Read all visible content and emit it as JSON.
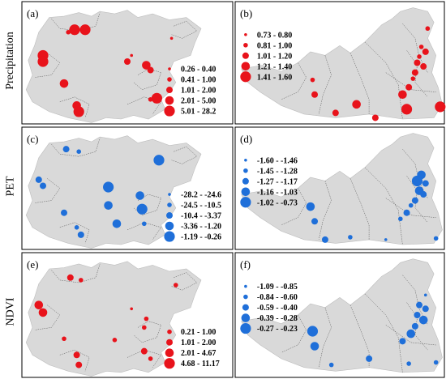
{
  "row_labels": [
    "Precipitation",
    "PET",
    "NDVI"
  ],
  "colors": {
    "positive": "#e8131b",
    "negative": "#1f6fd9",
    "land": "#d9d9d9",
    "frame": "#000000",
    "boundary": "#555555"
  },
  "panels": [
    {
      "id": "a",
      "label": "(a)",
      "map": "left",
      "color_key": "positive",
      "legend": [
        "0.26 - 0.40",
        "0.41 - 1.00",
        "1.01 - 2.00",
        "2.01 - 5.00",
        "5.01 - 28.2"
      ],
      "stations": [
        {
          "lon": 0.25,
          "lat": 0.77,
          "class": 5
        },
        {
          "lon": 0.3,
          "lat": 0.77,
          "class": 5
        },
        {
          "lon": 0.22,
          "lat": 0.75,
          "class": 2
        },
        {
          "lon": 0.1,
          "lat": 0.56,
          "class": 5
        },
        {
          "lon": 0.1,
          "lat": 0.51,
          "class": 5
        },
        {
          "lon": 0.71,
          "lat": 0.7,
          "class": 1
        },
        {
          "lon": 0.52,
          "lat": 0.56,
          "class": 1
        },
        {
          "lon": 0.5,
          "lat": 0.51,
          "class": 3
        },
        {
          "lon": 0.59,
          "lat": 0.48,
          "class": 4
        },
        {
          "lon": 0.61,
          "lat": 0.44,
          "class": 3
        },
        {
          "lon": 0.2,
          "lat": 0.33,
          "class": 4
        },
        {
          "lon": 0.64,
          "lat": 0.21,
          "class": 5
        },
        {
          "lon": 0.61,
          "lat": 0.2,
          "class": 2
        },
        {
          "lon": 0.27,
          "lat": 0.1,
          "class": 5
        },
        {
          "lon": 0.26,
          "lat": 0.15,
          "class": 4
        }
      ]
    },
    {
      "id": "b",
      "label": "(b)",
      "map": "right",
      "color_key": "positive",
      "legend": [
        "0.73 - 0.80",
        "0.81 - 1.00",
        "1.01 - 1.20",
        "1.21 - 1.40",
        "1.41 - 1.60"
      ],
      "stations": [
        {
          "lon": 0.92,
          "lat": 0.78,
          "class": 2
        },
        {
          "lon": 0.89,
          "lat": 0.63,
          "class": 2
        },
        {
          "lon": 0.91,
          "lat": 0.59,
          "class": 3
        },
        {
          "lon": 0.88,
          "lat": 0.55,
          "class": 2
        },
        {
          "lon": 0.87,
          "lat": 0.5,
          "class": 3
        },
        {
          "lon": 0.9,
          "lat": 0.47,
          "class": 3
        },
        {
          "lon": 0.86,
          "lat": 0.42,
          "class": 3
        },
        {
          "lon": 0.85,
          "lat": 0.37,
          "class": 2
        },
        {
          "lon": 0.83,
          "lat": 0.3,
          "class": 3
        },
        {
          "lon": 0.8,
          "lat": 0.24,
          "class": 4
        },
        {
          "lon": 0.37,
          "lat": 0.36,
          "class": 2
        },
        {
          "lon": 0.38,
          "lat": 0.24,
          "class": 3
        },
        {
          "lon": 0.48,
          "lat": 0.09,
          "class": 3
        },
        {
          "lon": 0.58,
          "lat": 0.16,
          "class": 4
        },
        {
          "lon": 0.67,
          "lat": 0.05,
          "class": 3
        },
        {
          "lon": 0.82,
          "lat": 0.12,
          "class": 5
        },
        {
          "lon": 0.98,
          "lat": 0.14,
          "class": 5
        }
      ]
    },
    {
      "id": "c",
      "label": "(c)",
      "map": "left",
      "color_key": "negative",
      "legend": [
        "-28.2 - -24.6",
        "-24.5 - -10.5",
        "-10.4 - -3.37",
        "-3.36 - -1.20",
        "-1.19 - -0.26"
      ],
      "stations": [
        {
          "lon": 0.21,
          "lat": 0.82,
          "class": 3
        },
        {
          "lon": 0.27,
          "lat": 0.8,
          "class": 2
        },
        {
          "lon": 0.65,
          "lat": 0.73,
          "class": 5
        },
        {
          "lon": 0.08,
          "lat": 0.57,
          "class": 3
        },
        {
          "lon": 0.1,
          "lat": 0.52,
          "class": 3
        },
        {
          "lon": 0.41,
          "lat": 0.51,
          "class": 5
        },
        {
          "lon": 0.41,
          "lat": 0.36,
          "class": 4
        },
        {
          "lon": 0.56,
          "lat": 0.44,
          "class": 4
        },
        {
          "lon": 0.57,
          "lat": 0.33,
          "class": 5
        },
        {
          "lon": 0.2,
          "lat": 0.3,
          "class": 3
        },
        {
          "lon": 0.58,
          "lat": 0.21,
          "class": 2
        },
        {
          "lon": 0.45,
          "lat": 0.21,
          "class": 4
        },
        {
          "lon": 0.26,
          "lat": 0.18,
          "class": 2
        },
        {
          "lon": 0.28,
          "lat": 0.12,
          "class": 3
        }
      ]
    },
    {
      "id": "d",
      "label": "(d)",
      "map": "right",
      "color_key": "negative",
      "legend": [
        "-1.60 - -1.46",
        "-1.45 - -1.28",
        "-1.27 - -1.17",
        "-1.16 - -1.03",
        "-1.02 - -0.73"
      ],
      "stations": [
        {
          "lon": 0.89,
          "lat": 0.61,
          "class": 4
        },
        {
          "lon": 0.87,
          "lat": 0.56,
          "class": 5
        },
        {
          "lon": 0.91,
          "lat": 0.54,
          "class": 3
        },
        {
          "lon": 0.88,
          "lat": 0.48,
          "class": 4
        },
        {
          "lon": 0.9,
          "lat": 0.45,
          "class": 3
        },
        {
          "lon": 0.86,
          "lat": 0.4,
          "class": 3
        },
        {
          "lon": 0.84,
          "lat": 0.36,
          "class": 2
        },
        {
          "lon": 0.82,
          "lat": 0.3,
          "class": 3
        },
        {
          "lon": 0.79,
          "lat": 0.25,
          "class": 2
        },
        {
          "lon": 0.36,
          "lat": 0.35,
          "class": 4
        },
        {
          "lon": 0.38,
          "lat": 0.23,
          "class": 3
        },
        {
          "lon": 0.43,
          "lat": 0.08,
          "class": 3
        },
        {
          "lon": 0.55,
          "lat": 0.1,
          "class": 2
        },
        {
          "lon": 0.72,
          "lat": 0.08,
          "class": 1
        },
        {
          "lon": 0.96,
          "lat": 0.09,
          "class": 2
        }
      ]
    },
    {
      "id": "e",
      "label": "(e)",
      "map": "left",
      "color_key": "positive",
      "legend": [
        "0.21 - 1.00",
        "1.01 - 2.00",
        "2.01 - 4.67",
        "4.68 - 11.17"
      ],
      "stations": [
        {
          "lon": 0.23,
          "lat": 0.8,
          "class": 3
        },
        {
          "lon": 0.28,
          "lat": 0.78,
          "class": 2
        },
        {
          "lon": 0.73,
          "lat": 0.74,
          "class": 2
        },
        {
          "lon": 0.08,
          "lat": 0.58,
          "class": 4
        },
        {
          "lon": 0.1,
          "lat": 0.52,
          "class": 4
        },
        {
          "lon": 0.52,
          "lat": 0.55,
          "class": 1
        },
        {
          "lon": 0.59,
          "lat": 0.47,
          "class": 2
        },
        {
          "lon": 0.58,
          "lat": 0.4,
          "class": 2
        },
        {
          "lon": 0.2,
          "lat": 0.31,
          "class": 2
        },
        {
          "lon": 0.44,
          "lat": 0.3,
          "class": 2
        },
        {
          "lon": 0.58,
          "lat": 0.21,
          "class": 3
        },
        {
          "lon": 0.61,
          "lat": 0.15,
          "class": 2
        },
        {
          "lon": 0.26,
          "lat": 0.18,
          "class": 3
        },
        {
          "lon": 0.27,
          "lat": 0.1,
          "class": 3
        }
      ]
    },
    {
      "id": "f",
      "label": "(f)",
      "map": "right",
      "color_key": "negative",
      "legend": [
        "-1.09 - -0.85",
        "-0.84 - -0.60",
        "-0.59 - -0.40",
        "-0.39 - -0.28",
        "-0.27 - -0.23"
      ],
      "stations": [
        {
          "lon": 0.91,
          "lat": 0.66,
          "class": 1
        },
        {
          "lon": 0.88,
          "lat": 0.58,
          "class": 3
        },
        {
          "lon": 0.91,
          "lat": 0.55,
          "class": 3
        },
        {
          "lon": 0.87,
          "lat": 0.5,
          "class": 3
        },
        {
          "lon": 0.9,
          "lat": 0.46,
          "class": 4
        },
        {
          "lon": 0.86,
          "lat": 0.41,
          "class": 3
        },
        {
          "lon": 0.84,
          "lat": 0.35,
          "class": 4
        },
        {
          "lon": 0.8,
          "lat": 0.29,
          "class": 3
        },
        {
          "lon": 0.37,
          "lat": 0.37,
          "class": 5
        },
        {
          "lon": 0.38,
          "lat": 0.25,
          "class": 4
        },
        {
          "lon": 0.46,
          "lat": 0.1,
          "class": 2
        },
        {
          "lon": 0.64,
          "lat": 0.15,
          "class": 3
        },
        {
          "lon": 0.83,
          "lat": 0.11,
          "class": 2
        },
        {
          "lon": 0.96,
          "lat": 0.12,
          "class": 2
        }
      ]
    }
  ]
}
